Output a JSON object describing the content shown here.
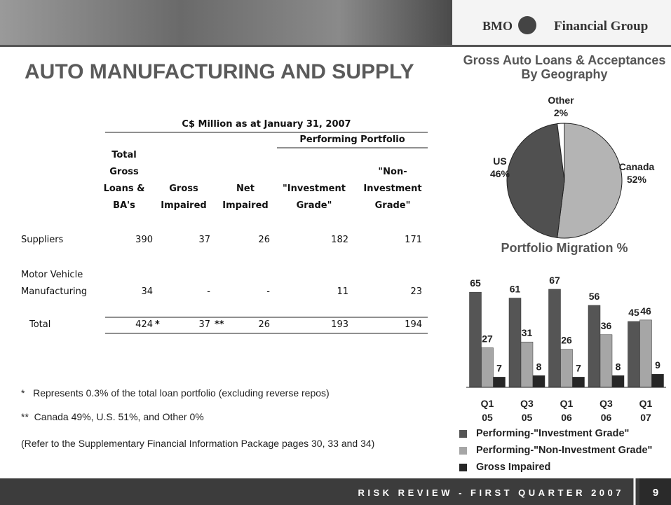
{
  "header": {
    "logo_left": "BMO",
    "logo_right": "Financial Group"
  },
  "title": "AUTO MANUFACTURING AND SUPPLY",
  "table": {
    "caption": "C$ Million as at January 31, 2007",
    "group_header": "Performing Portfolio",
    "columns": [
      [
        "Total",
        "Gross",
        "Loans &",
        "BA's"
      ],
      [
        "Gross",
        "Impaired"
      ],
      [
        "Net",
        "Impaired"
      ],
      [
        "\"Investment",
        "Grade\""
      ],
      [
        "\"Non-",
        "Investment",
        "Grade\""
      ]
    ],
    "rows": [
      {
        "label": [
          "Suppliers"
        ],
        "cells": [
          "390",
          "37",
          "26",
          "182",
          "171"
        ]
      },
      {
        "label": [
          "Motor Vehicle",
          "Manufacturing"
        ],
        "cells": [
          "34",
          "-",
          "-",
          "11",
          "23"
        ]
      },
      {
        "label": [
          "Total"
        ],
        "cells": [
          "424",
          "37",
          "26",
          "193",
          "194"
        ],
        "notes": [
          "*",
          "**"
        ]
      }
    ]
  },
  "footnotes": [
    "*   Represents 0.3% of the total loan portfolio (excluding reverse repos)",
    "**  Canada 49%, U.S. 51%, and Other 0%",
    "(Refer to the Supplementary Financial Information Package pages 30, 33 and 34)"
  ],
  "chart_data": [
    {
      "type": "pie",
      "title": "Gross Auto Loans & Acceptances By Geography",
      "categories": [
        "Canada",
        "US",
        "Other"
      ],
      "values": [
        52,
        46,
        2
      ],
      "value_labels": [
        "52%",
        "46%",
        "2%"
      ],
      "colors": [
        "#b4b4b4",
        "#505050",
        "#ffffff"
      ]
    },
    {
      "type": "bar",
      "title": "Portfolio Migration %",
      "categories": [
        "Q1 05",
        "Q3 05",
        "Q1 06",
        "Q3 06",
        "Q1 07"
      ],
      "series": [
        {
          "name": "Performing-\"Investment Grade\"",
          "color": "#555555",
          "values": [
            65,
            61,
            67,
            56,
            45
          ]
        },
        {
          "name": "Performing-\"Non-Investment Grade\"",
          "color": "#a6a6a6",
          "values": [
            27,
            31,
            26,
            36,
            46
          ]
        },
        {
          "name": "Gross Impaired",
          "color": "#262626",
          "values": [
            7,
            8,
            7,
            8,
            9
          ]
        }
      ],
      "ylim": [
        0,
        70
      ]
    }
  ],
  "footer": {
    "text": "RISK REVIEW - FIRST QUARTER 2007",
    "page": "9"
  }
}
